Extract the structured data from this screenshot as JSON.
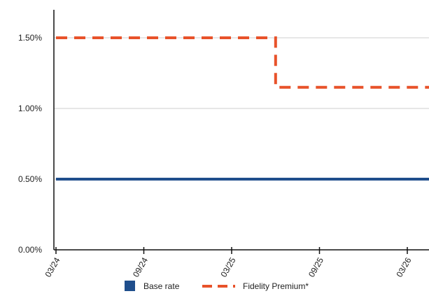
{
  "chart_data": {
    "type": "line",
    "x_tick_labels": [
      "03/24",
      "09/24",
      "03/25",
      "09/25",
      "03/26"
    ],
    "y_tick_labels": [
      "0.00%",
      "0.50%",
      "1.00%",
      "1.50%"
    ],
    "y_ticks": [
      0,
      0.5,
      1.0,
      1.5
    ],
    "ylim": [
      0,
      1.75
    ],
    "xlim": [
      "2024-03",
      "2026-05"
    ],
    "grid": true,
    "legend_position": "bottom",
    "series": [
      {
        "name": "Base rate",
        "style": "solid",
        "color": "#1f4e8c",
        "points": [
          {
            "x": "2024-03",
            "y": 0.5
          },
          {
            "x": "2026-05",
            "y": 0.5
          }
        ]
      },
      {
        "name": "Fidelity Premium*",
        "style": "dashed",
        "color": "#e8522a",
        "points": [
          {
            "x": "2024-03",
            "y": 1.5
          },
          {
            "x": "2025-06",
            "y": 1.5
          },
          {
            "x": "2025-06",
            "y": 1.15
          },
          {
            "x": "2026-05",
            "y": 1.15
          }
        ]
      }
    ]
  }
}
